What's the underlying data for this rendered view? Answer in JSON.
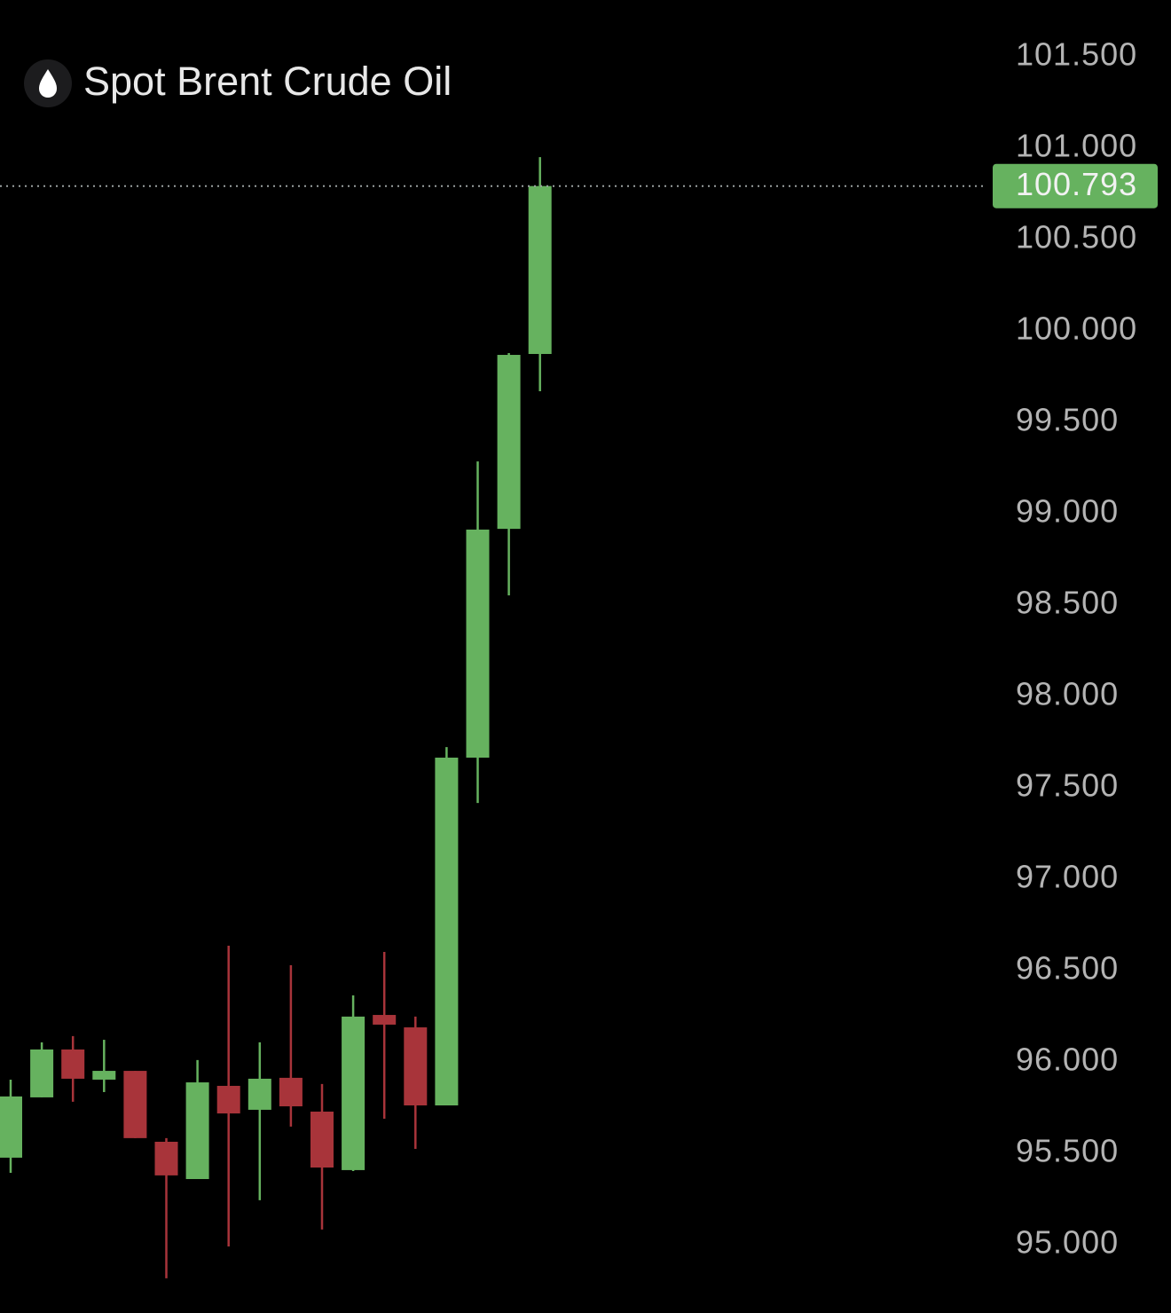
{
  "chart_data": {
    "type": "candlestick",
    "title": "Spot Brent Crude Oil",
    "categories": [
      null,
      null,
      null,
      null,
      null,
      null,
      null,
      null,
      null,
      null,
      null,
      null,
      null,
      null,
      null,
      null,
      null,
      null
    ],
    "open": [
      95.476,
      95.806,
      96.068,
      95.903,
      95.951,
      95.563,
      95.359,
      95.869,
      95.738,
      95.913,
      95.728,
      95.408,
      96.257,
      96.189,
      95.762,
      97.665,
      98.917,
      99.874
    ],
    "high": [
      95.903,
      96.107,
      96.141,
      96.121,
      95.951,
      95.583,
      96.01,
      96.636,
      96.107,
      96.529,
      95.879,
      96.364,
      96.602,
      96.248,
      97.723,
      99.286,
      99.879,
      100.951
    ],
    "low": [
      95.393,
      95.806,
      95.782,
      95.835,
      95.583,
      94.816,
      95.359,
      94.99,
      95.243,
      95.646,
      95.083,
      95.403,
      95.689,
      95.524,
      95.762,
      97.417,
      98.553,
      99.67
    ],
    "close": [
      95.811,
      96.068,
      95.908,
      95.951,
      95.583,
      95.379,
      95.888,
      95.718,
      95.908,
      95.757,
      95.422,
      96.248,
      96.204,
      95.762,
      97.665,
      98.913,
      99.869,
      100.793
    ],
    "up_color": "#66b25f",
    "down_color": "#a8343a",
    "last_price": {
      "value": 100.793,
      "label": "100.793"
    },
    "ylim": [
      94.626,
      101.811
    ],
    "yticks": [
      {
        "value": 95,
        "label": "95.000"
      },
      {
        "value": 95.5,
        "label": "95.500"
      },
      {
        "value": 96,
        "label": "96.000"
      },
      {
        "value": 96.5,
        "label": "96.500"
      },
      {
        "value": 97,
        "label": "97.000"
      },
      {
        "value": 97.5,
        "label": "97.500"
      },
      {
        "value": 98,
        "label": "98.000"
      },
      {
        "value": 98.5,
        "label": "98.500"
      },
      {
        "value": 99,
        "label": "99.000"
      },
      {
        "value": 99.5,
        "label": "99.500"
      },
      {
        "value": 100,
        "label": "100.000"
      },
      {
        "value": 100.5,
        "label": "100.500"
      },
      {
        "value": 101,
        "label": "101.000"
      },
      {
        "value": 101.5,
        "label": "101.500"
      }
    ],
    "grid": false
  }
}
